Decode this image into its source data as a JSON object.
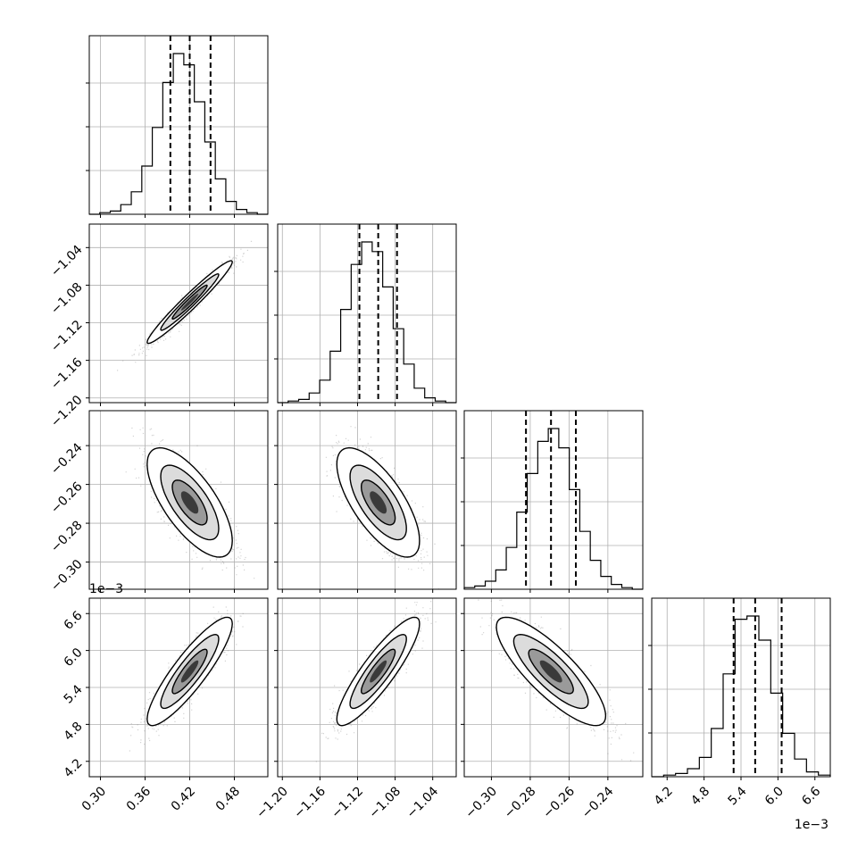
{
  "chart_data": {
    "type": "corner",
    "title": "",
    "grid": true,
    "parameters": [
      {
        "name": "",
        "range": [
          0.285,
          0.525
        ],
        "ticks": [
          "0.30",
          "0.36",
          "0.42",
          "0.48"
        ],
        "tick_values": [
          0.3,
          0.36,
          0.42,
          0.48
        ],
        "quantiles": [
          0.394,
          0.42,
          0.448
        ],
        "offset": ""
      },
      {
        "name": "",
        "range": [
          -1.205,
          -1.015
        ],
        "ticks": [
          "−1.20",
          "−1.16",
          "−1.12",
          "−1.08",
          "−1.04"
        ],
        "tick_values": [
          -1.2,
          -1.16,
          -1.12,
          -1.08,
          -1.04
        ],
        "quantiles": [
          -1.118,
          -1.098,
          -1.078
        ],
        "offset": ""
      },
      {
        "name": "",
        "range": [
          -0.314,
          -0.222
        ],
        "ticks": [
          "−0.30",
          "−0.28",
          "−0.26",
          "−0.24"
        ],
        "tick_values": [
          -0.3,
          -0.28,
          -0.26,
          -0.24
        ],
        "quantiles": [
          -0.2822,
          -0.2693,
          -0.2565
        ],
        "offset": ""
      },
      {
        "name": "",
        "range": [
          3.95,
          6.85
        ],
        "ticks": [
          "4.2",
          "4.8",
          "5.4",
          "6.0",
          "6.6"
        ],
        "tick_values": [
          4.2,
          4.8,
          5.4,
          6.0,
          6.6
        ],
        "quantiles": [
          5.28,
          5.63,
          6.06
        ],
        "offset": "1e−3"
      }
    ],
    "histograms": [
      {
        "counts": [
          0,
          1,
          2,
          6,
          14,
          30,
          54,
          82,
          100,
          93,
          70,
          45,
          22,
          8,
          3,
          1,
          0
        ]
      },
      {
        "counts": [
          0,
          1,
          2,
          6,
          14,
          32,
          58,
          86,
          100,
          94,
          72,
          46,
          24,
          9,
          3,
          1,
          0
        ]
      },
      {
        "counts": [
          1,
          2,
          5,
          12,
          26,
          48,
          72,
          92,
          100,
          88,
          62,
          36,
          18,
          8,
          3,
          1,
          0
        ]
      },
      {
        "counts": [
          0,
          1,
          2,
          5,
          12,
          30,
          64,
          98,
          100,
          85,
          52,
          27,
          11,
          3,
          1
        ]
      }
    ],
    "correlations": [
      [
        0,
        1
      ],
      [
        1,
        0
      ],
      [
        2,
        -0.7
      ],
      [
        3,
        0.85
      ],
      [
        4,
        0.9
      ],
      [
        5,
        -0.8
      ]
    ],
    "pairs": [
      {
        "x": 0,
        "y": 1,
        "mean": [
          0.42,
          -1.098
        ],
        "sd": [
          0.026,
          0.02
        ],
        "rho": 0.97
      },
      {
        "x": 0,
        "y": 2,
        "mean": [
          0.42,
          -0.2693
        ],
        "sd": [
          0.026,
          0.0128
        ],
        "rho": -0.7
      },
      {
        "x": 1,
        "y": 2,
        "mean": [
          -1.098,
          -0.2693
        ],
        "sd": [
          0.02,
          0.0128
        ],
        "rho": -0.7
      },
      {
        "x": 0,
        "y": 3,
        "mean": [
          0.42,
          5.66
        ],
        "sd": [
          0.026,
          0.4
        ],
        "rho": 0.88
      },
      {
        "x": 1,
        "y": 3,
        "mean": [
          -1.098,
          5.66
        ],
        "sd": [
          0.02,
          0.4
        ],
        "rho": 0.88
      },
      {
        "x": 2,
        "y": 3,
        "mean": [
          -0.2693,
          5.66
        ],
        "sd": [
          0.0128,
          0.4
        ],
        "rho": -0.82
      }
    ]
  }
}
